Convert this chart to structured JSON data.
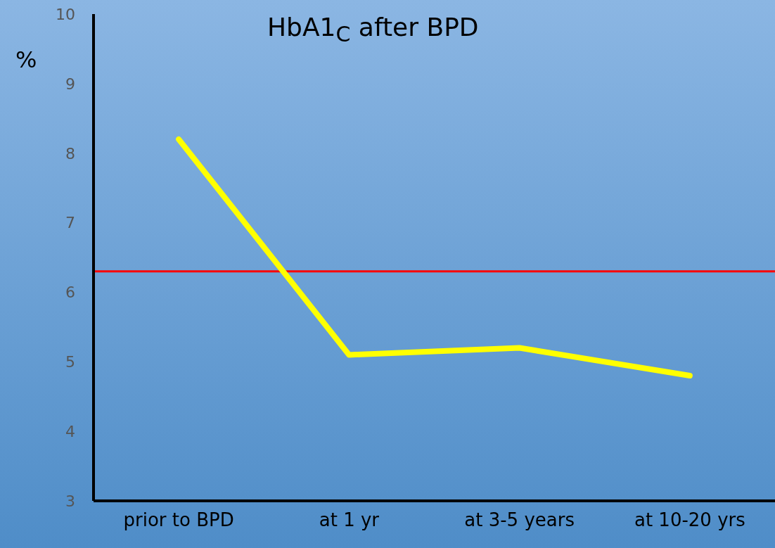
{
  "chart_data": {
    "type": "line",
    "title": "HbA1$_{C}$ after BPD",
    "ylabel": "%",
    "categories": [
      "prior to BPD",
      "at 1 yr",
      "at 3-5 years",
      "at 10-20 yrs"
    ],
    "series": [
      {
        "color": "#ffff00",
        "values": [
          8.2,
          5.1,
          5.2,
          4.8
        ]
      }
    ],
    "ylim": [
      3,
      10
    ],
    "yticks": [
      3,
      4,
      5,
      6,
      7,
      8,
      9,
      10
    ],
    "ref_lines": [
      {
        "axis": "y",
        "value": 6.3,
        "color": "#ff0000"
      }
    ],
    "marker": "none",
    "grid": false,
    "legend": false
  }
}
